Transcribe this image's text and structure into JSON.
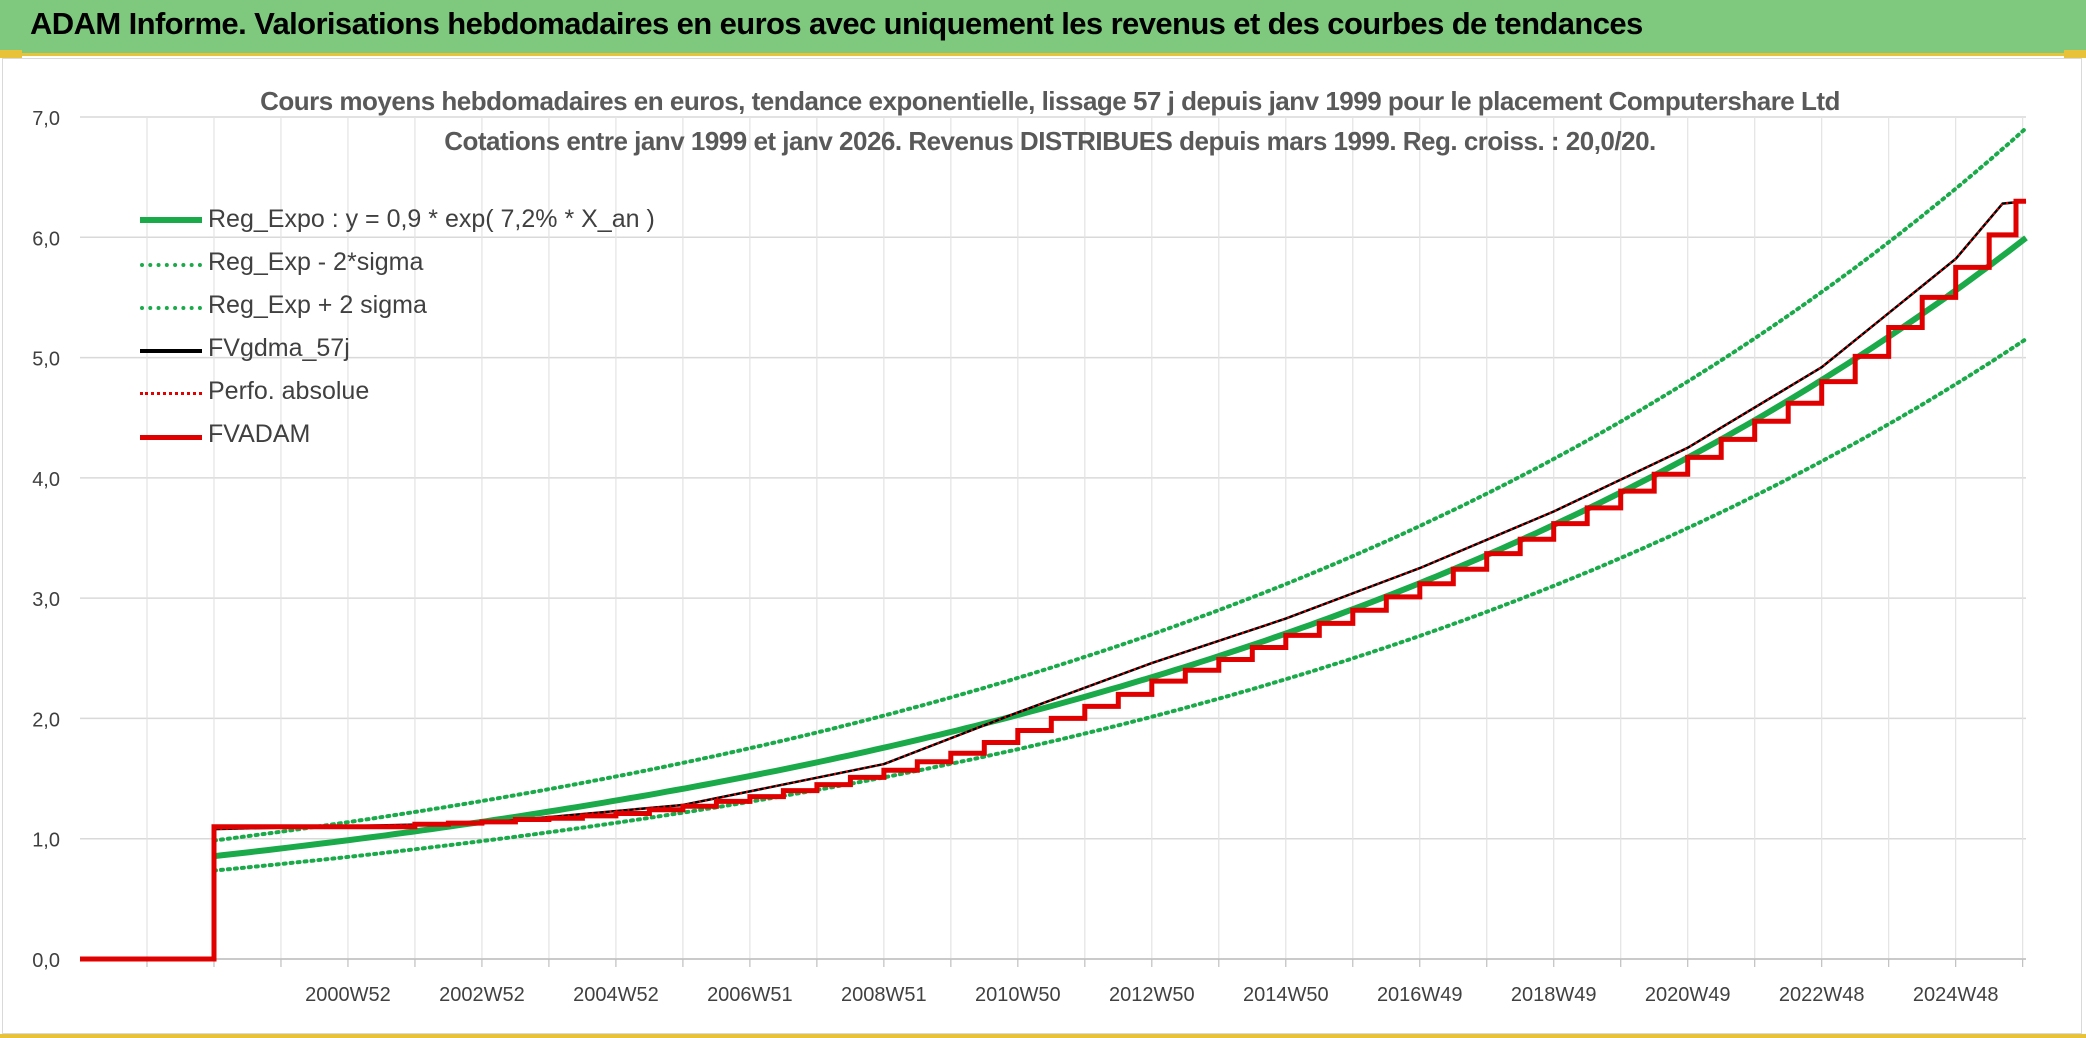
{
  "banner": {
    "title": "ADAM Informe. Valorisations hebdomadaires en euros avec uniquement les revenus et des courbes de tendances"
  },
  "colors": {
    "banner_bg": "#7fc97f",
    "accent_gold": "#e8c33a",
    "reg_expo": "#1aaa4a",
    "band": "#1aaa4a",
    "fv_gdma": "#000000",
    "perfo": "#e00000",
    "fvadam": "#e00000",
    "grid": "#d9d9d9",
    "axis_text": "#404040"
  },
  "chart_data": {
    "type": "line",
    "title_line1": "Cours moyens hebdomadaires en euros, tendance exponentielle, lissage 57 j depuis janv 1999 pour le placement Computershare Ltd",
    "title_line2": "Cotations entre janv 1999 et janv 2026. Revenus DISTRIBUES depuis mars 1999. Reg. croiss. : 20,0/20.",
    "xlabel": "",
    "ylabel": "",
    "ylim": [
      0,
      7
    ],
    "y_ticks": [
      "0,0",
      "1,0",
      "2,0",
      "3,0",
      "4,0",
      "5,0",
      "6,0",
      "7,0"
    ],
    "x_tick_labels": [
      "2000W52",
      "2002W52",
      "2004W52",
      "2006W51",
      "2008W51",
      "2010W50",
      "2012W50",
      "2014W50",
      "2016W49",
      "2018W49",
      "2020W49",
      "2022W48",
      "2024W48"
    ],
    "x_ticks_years": [
      2001.0,
      2003.0,
      2005.0,
      2007.0,
      2009.0,
      2011.0,
      2013.0,
      2015.0,
      2017.0,
      2019.0,
      2021.0,
      2023.0,
      2025.0
    ],
    "x_range_years": [
      1997.0,
      2026.05
    ],
    "data_start_year": 1999.0,
    "legend_position": "top-left",
    "grid": true,
    "series": [
      {
        "name": "Reg_Expo : y = 0,9 * exp( 7,2% *  X_an )",
        "kind": "exp",
        "a": 0.855,
        "r": 0.072,
        "t0": 1999.0,
        "start": 1999.0,
        "end": 2026.05
      },
      {
        "name": "Reg_Exp - 2*sigma",
        "kind": "exp",
        "a": 0.735,
        "r": 0.072,
        "t0": 1999.0,
        "start": 1999.0,
        "end": 2026.05
      },
      {
        "name": "Reg_Exp + 2 sigma",
        "kind": "exp",
        "a": 0.985,
        "r": 0.072,
        "t0": 1999.0,
        "start": 1999.0,
        "end": 2026.05
      },
      {
        "name": "FVgdma_57j",
        "kind": "line",
        "points": [
          [
            1997.0,
            0.0
          ],
          [
            1999.0,
            0.0
          ],
          [
            1999.0,
            1.08
          ],
          [
            2003.0,
            1.13
          ],
          [
            2006.0,
            1.28
          ],
          [
            2009.0,
            1.62
          ],
          [
            2011.0,
            2.05
          ],
          [
            2013.0,
            2.46
          ],
          [
            2015.0,
            2.83
          ],
          [
            2017.0,
            3.25
          ],
          [
            2019.0,
            3.72
          ],
          [
            2021.0,
            4.25
          ],
          [
            2023.0,
            4.92
          ],
          [
            2025.0,
            5.82
          ],
          [
            2025.7,
            6.28
          ],
          [
            2026.05,
            6.3
          ]
        ]
      },
      {
        "name": "Perfo. absolue",
        "kind": "line",
        "points": [
          [
            1997.0,
            0.0
          ],
          [
            1999.0,
            0.0
          ],
          [
            1999.0,
            1.08
          ],
          [
            2003.0,
            1.13
          ],
          [
            2006.0,
            1.28
          ],
          [
            2009.0,
            1.62
          ],
          [
            2011.0,
            2.05
          ],
          [
            2013.0,
            2.46
          ],
          [
            2015.0,
            2.83
          ],
          [
            2017.0,
            3.25
          ],
          [
            2019.0,
            3.72
          ],
          [
            2021.0,
            4.25
          ],
          [
            2023.0,
            4.92
          ],
          [
            2025.0,
            5.82
          ],
          [
            2025.7,
            6.28
          ],
          [
            2026.05,
            6.3
          ]
        ]
      },
      {
        "name": "FVADAM",
        "kind": "step",
        "points": [
          [
            1997.0,
            0.0
          ],
          [
            1999.0,
            0.0
          ],
          [
            1999.0,
            1.1
          ],
          [
            2001.0,
            1.1
          ],
          [
            2001.5,
            1.1
          ],
          [
            2002.0,
            1.12
          ],
          [
            2002.5,
            1.13
          ],
          [
            2003.0,
            1.14
          ],
          [
            2003.5,
            1.16
          ],
          [
            2004.0,
            1.17
          ],
          [
            2004.5,
            1.19
          ],
          [
            2005.0,
            1.21
          ],
          [
            2005.5,
            1.24
          ],
          [
            2006.0,
            1.27
          ],
          [
            2006.5,
            1.31
          ],
          [
            2007.0,
            1.35
          ],
          [
            2007.5,
            1.4
          ],
          [
            2008.0,
            1.45
          ],
          [
            2008.5,
            1.51
          ],
          [
            2009.0,
            1.57
          ],
          [
            2009.5,
            1.64
          ],
          [
            2010.0,
            1.71
          ],
          [
            2010.5,
            1.8
          ],
          [
            2011.0,
            1.9
          ],
          [
            2011.5,
            2.0
          ],
          [
            2012.0,
            2.1
          ],
          [
            2012.5,
            2.2
          ],
          [
            2013.0,
            2.31
          ],
          [
            2013.5,
            2.4
          ],
          [
            2014.0,
            2.49
          ],
          [
            2014.5,
            2.59
          ],
          [
            2015.0,
            2.69
          ],
          [
            2015.5,
            2.79
          ],
          [
            2016.0,
            2.9
          ],
          [
            2016.5,
            3.01
          ],
          [
            2017.0,
            3.12
          ],
          [
            2017.5,
            3.24
          ],
          [
            2018.0,
            3.37
          ],
          [
            2018.5,
            3.49
          ],
          [
            2019.0,
            3.62
          ],
          [
            2019.5,
            3.75
          ],
          [
            2020.0,
            3.89
          ],
          [
            2020.5,
            4.03
          ],
          [
            2021.0,
            4.17
          ],
          [
            2021.5,
            4.32
          ],
          [
            2022.0,
            4.47
          ],
          [
            2022.5,
            4.62
          ],
          [
            2023.0,
            4.8
          ],
          [
            2023.5,
            5.01
          ],
          [
            2024.0,
            5.25
          ],
          [
            2024.5,
            5.5
          ],
          [
            2025.0,
            5.75
          ],
          [
            2025.5,
            6.02
          ],
          [
            2025.9,
            6.3
          ],
          [
            2026.05,
            6.3
          ]
        ]
      }
    ]
  }
}
